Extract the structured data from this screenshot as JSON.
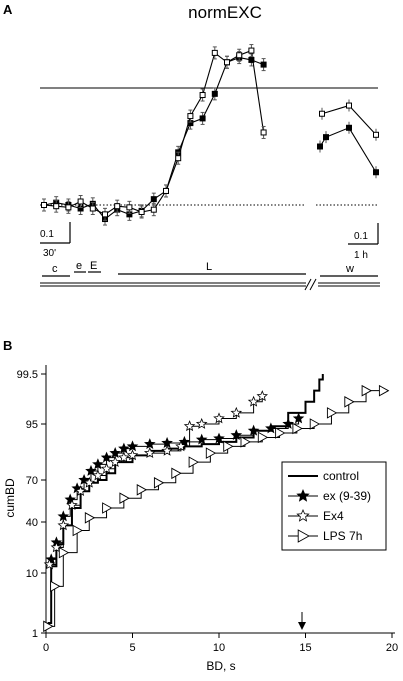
{
  "panel_a": {
    "letter": "A",
    "title": "normEXC",
    "scalebar_left": {
      "value": "0.1",
      "time": "30'"
    },
    "scalebar_right": {
      "value": "0.1",
      "time": "1 h"
    },
    "phase_labels": [
      "c",
      "e",
      "E",
      "L",
      "w"
    ]
  },
  "panel_b": {
    "letter": "B",
    "xlabel": "BD, s",
    "ylabel": "cumBD",
    "x_ticks": [
      "0",
      "5",
      "10",
      "15",
      "20"
    ],
    "y_ticks": [
      "99.5",
      "95",
      "70",
      "40",
      "10",
      "1"
    ],
    "legend": [
      "control",
      "ex (9-39)",
      "Ex4",
      "LPS 7h"
    ]
  },
  "chart_data": [
    {
      "type": "line",
      "title": "normEXC",
      "xlabel": "",
      "ylabel": "",
      "reference_lines": {
        "upper_solid": 1.0,
        "baseline_dotted": 0.0
      },
      "series": [
        {
          "name": "",
          "marker": "filled-square",
          "segment1_y": [
            0.0,
            0.02,
            0.0,
            -0.03,
            0.01,
            -0.12,
            -0.04,
            -0.08,
            -0.05,
            0.05,
            0.12,
            0.45,
            0.7,
            0.74,
            0.95,
            1.22,
            1.26,
            1.24,
            1.2
          ],
          "segment2_y": [
            0.5,
            0.58,
            0.66,
            0.28
          ]
        },
        {
          "name": "",
          "marker": "open-square",
          "segment1_y": [
            0.0,
            -0.01,
            -0.02,
            0.03,
            -0.03,
            -0.08,
            -0.01,
            -0.02,
            -0.06,
            -0.04,
            0.12,
            0.4,
            0.76,
            0.94,
            1.3,
            1.22,
            1.28,
            1.32,
            0.62
          ],
          "segment2_y": [
            0.78,
            0.85,
            0.6
          ]
        }
      ]
    },
    {
      "type": "line",
      "title": "",
      "xlabel": "BD, s",
      "ylabel": "cumBD",
      "xlim": [
        0,
        20
      ],
      "ytick_values": [
        1,
        10,
        40,
        70,
        95,
        99.5
      ],
      "legend_position": "right",
      "series": [
        {
          "name": "control",
          "x": [
            0.1,
            0.3,
            0.6,
            1.0,
            1.5,
            2.0,
            2.5,
            3.0,
            3.5,
            4.0,
            5.0,
            6.0,
            7.0,
            8.0,
            9.0,
            10.0,
            11.0,
            12.0,
            13.0,
            14.0,
            15.0,
            15.5,
            15.8,
            16.0
          ],
          "y": [
            2.5,
            14,
            27,
            38,
            50,
            62,
            68,
            70,
            73,
            78,
            81,
            83,
            84,
            85,
            86,
            87,
            89,
            92,
            94,
            96,
            97,
            98,
            99,
            99.5
          ]
        },
        {
          "name": "ex (9-39)",
          "x": [
            0.3,
            0.6,
            1.0,
            1.4,
            1.8,
            2.2,
            2.6,
            3.0,
            3.5,
            4.0,
            4.5,
            5.0,
            6.0,
            7.0,
            8.0,
            9.0,
            10.0,
            11.0,
            12.0,
            13.0,
            14.0,
            14.6
          ],
          "y": [
            18,
            28,
            44,
            56,
            64,
            70,
            74,
            77,
            80,
            82,
            84,
            85,
            86,
            86.5,
            87,
            88,
            88.5,
            90,
            92,
            93,
            95,
            95.5
          ]
        },
        {
          "name": "Ex4",
          "x": [
            0.2,
            0.6,
            1.0,
            1.5,
            2.0,
            2.5,
            3.0,
            3.5,
            4.0,
            4.5,
            5.0,
            6.0,
            7.0,
            7.8,
            8.3,
            9.0,
            10.0,
            11.0,
            12.0,
            12.5
          ],
          "y": [
            15,
            25,
            38,
            52,
            62,
            68,
            72,
            75,
            78,
            80,
            81,
            82,
            83,
            85,
            94,
            95,
            95.5,
            96,
            97,
            97.5
          ]
        },
        {
          "name": "LPS 7h",
          "x": [
            0.1,
            0.5,
            1.0,
            1.8,
            2.5,
            3.5,
            4.5,
            5.5,
            6.5,
            7.5,
            8.5,
            9.5,
            10.5,
            11.5,
            12.5,
            13.5,
            14.5,
            15.5,
            16.5,
            17.5,
            18.5,
            19.5
          ],
          "y": [
            2,
            8,
            22,
            35,
            43,
            50,
            57,
            63,
            68,
            73,
            78,
            82,
            85,
            87,
            89,
            91,
            93,
            95,
            96,
            97,
            98,
            98
          ]
        }
      ]
    }
  ]
}
